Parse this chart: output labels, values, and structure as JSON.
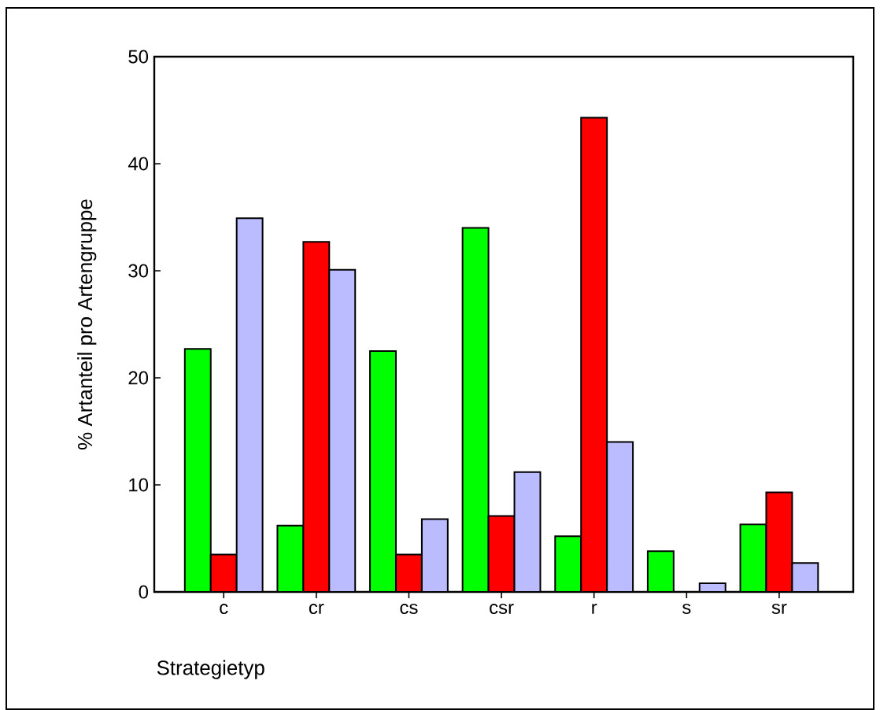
{
  "chart_data": {
    "type": "bar",
    "xlabel": "Strategietyp",
    "ylabel": "% Artanteil pro Artengruppe",
    "categories": [
      "c",
      "cr",
      "cs",
      "csr",
      "r",
      "s",
      "sr"
    ],
    "series": [
      {
        "color": "#00ff00",
        "values": [
          22.7,
          6.2,
          22.5,
          34.0,
          5.2,
          3.8,
          6.3
        ]
      },
      {
        "color": "#ff0000",
        "values": [
          3.5,
          32.7,
          3.5,
          7.1,
          44.3,
          0,
          9.3
        ]
      },
      {
        "color": "#bbbbff",
        "values": [
          34.9,
          30.1,
          6.8,
          11.2,
          14.0,
          0.8,
          2.7
        ]
      }
    ],
    "ylim": [
      0,
      50
    ],
    "yticks": [
      0,
      10,
      20,
      30,
      40,
      50
    ],
    "grid": false
  }
}
